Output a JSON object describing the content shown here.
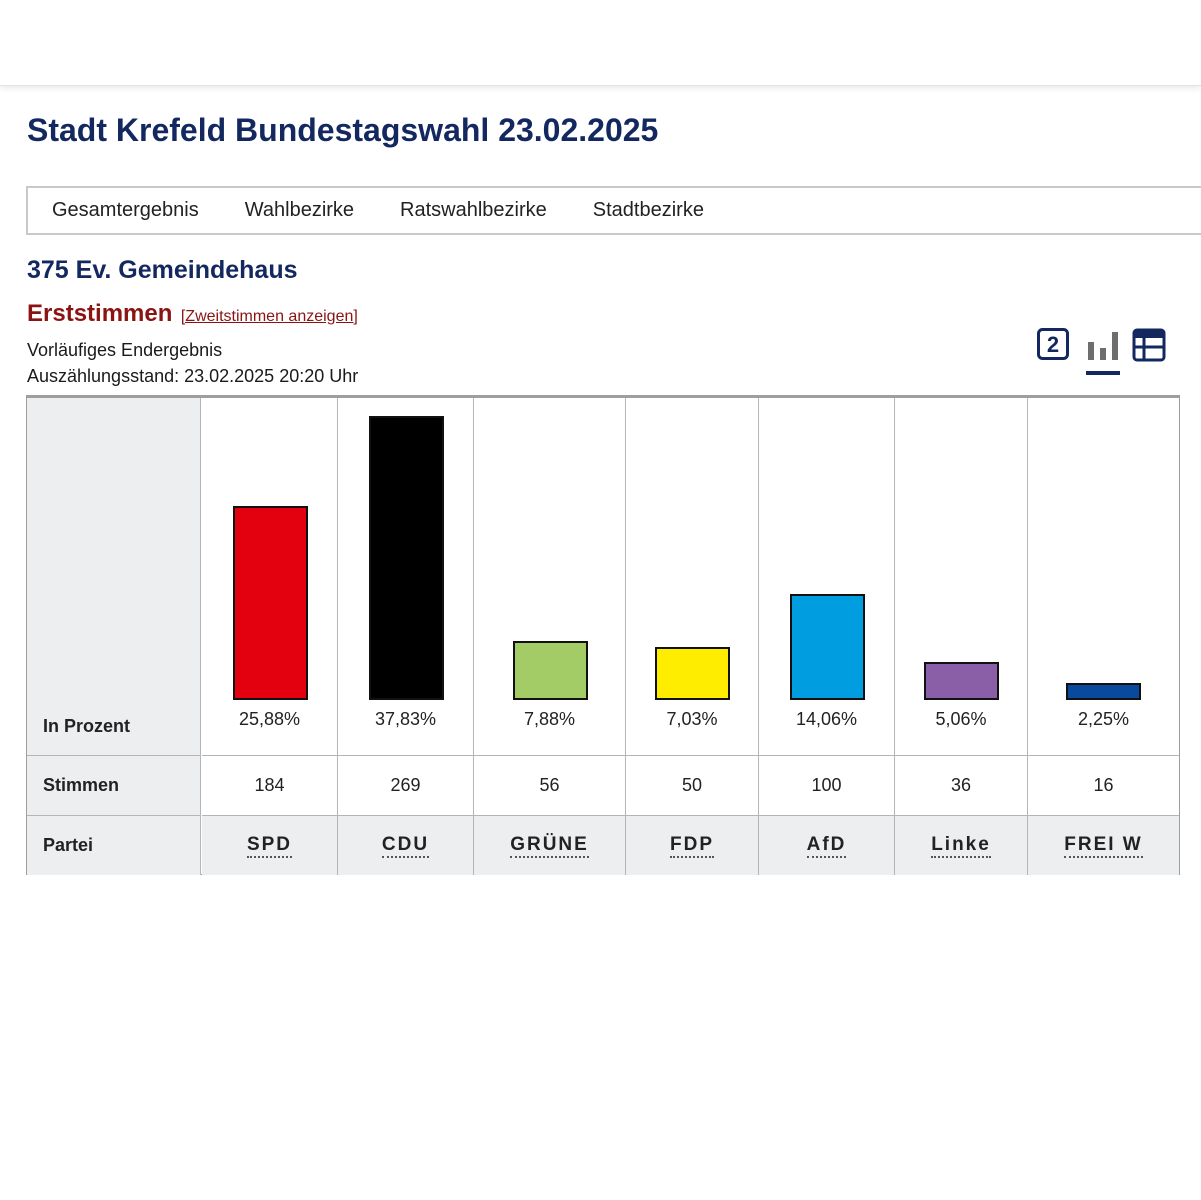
{
  "header": {
    "title": "Stadt Krefeld Bundestagswahl 23.02.2025"
  },
  "nav": {
    "items": [
      {
        "label": "Gesamtergebnis"
      },
      {
        "label": "Wahlbezirke"
      },
      {
        "label": "Ratswahlbezirke"
      },
      {
        "label": "Stadtbezirke"
      }
    ]
  },
  "district": {
    "title": "375 Ev. Gemeindehaus"
  },
  "vote_type": {
    "label": "Erststimmen",
    "switch_link": "[Zweitstimmen anzeigen]"
  },
  "status": {
    "line1": "Vorläufiges Endergebnis",
    "line2": "Auszählungsstand: 23.02.2025 20:20 Uhr"
  },
  "view_toggle": {
    "first_icon_text": "2",
    "icons": [
      "number-view-icon",
      "bar-chart-icon",
      "table-view-icon"
    ],
    "active": "bar-chart-icon"
  },
  "table": {
    "row_labels": {
      "percent": "In Prozent",
      "votes": "Stimmen",
      "party": "Partei"
    }
  },
  "chart_data": {
    "type": "bar",
    "categories": [
      "SPD",
      "CDU",
      "GRÜNE",
      "FDP",
      "AfD",
      "Linke",
      "FREI W"
    ],
    "values": [
      25.88,
      37.83,
      7.88,
      7.03,
      14.06,
      5.06,
      2.25
    ],
    "value_labels": [
      "25,88%",
      "37,83%",
      "7,88%",
      "7,03%",
      "14,06%",
      "5,06%",
      "2,25%"
    ],
    "votes": [
      "184",
      "269",
      "56",
      "50",
      "100",
      "36",
      "16"
    ],
    "colors": [
      "#e3000f",
      "#000000",
      "#a3cc66",
      "#ffed00",
      "#009ee0",
      "#8a5fa8",
      "#0a4a9e"
    ],
    "ylim": [
      0,
      37.83
    ]
  }
}
